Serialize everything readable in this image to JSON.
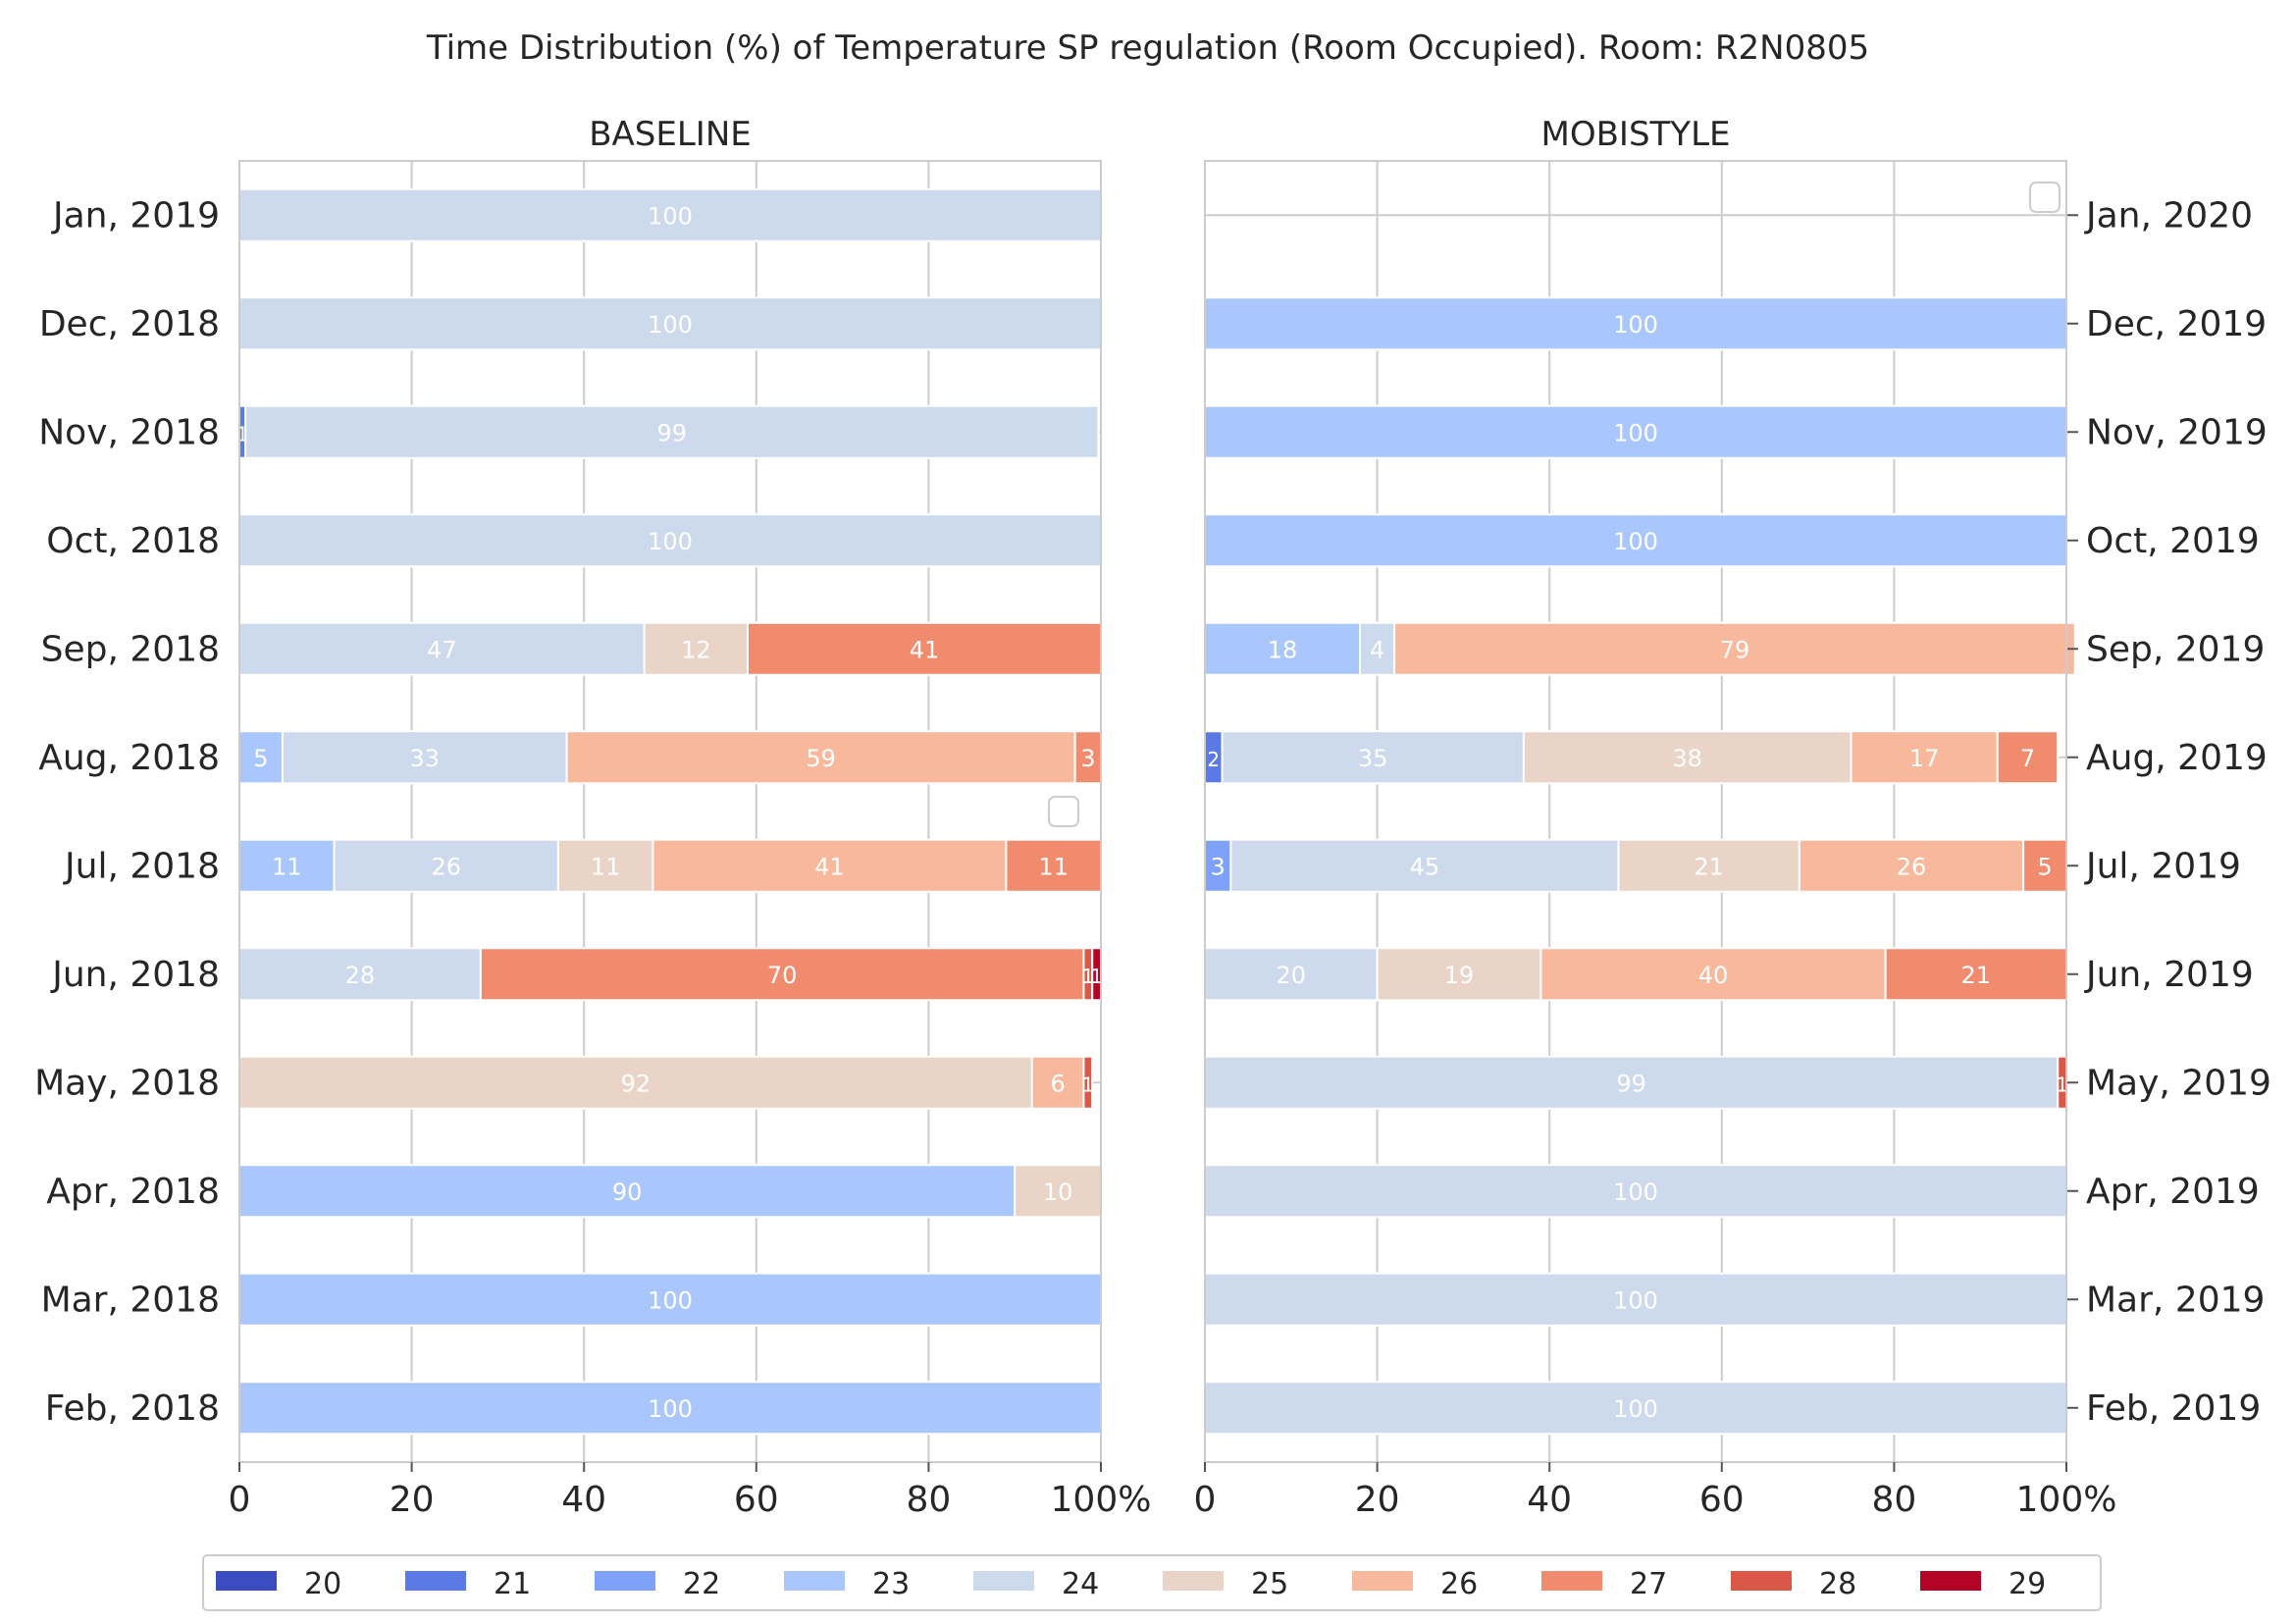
{
  "title": "Time Distribution (%) of Temperature SP regulation (Room Occupied). Room: R2N0805",
  "legend": {
    "labels": [
      "20",
      "21",
      "22",
      "23",
      "24",
      "25",
      "26",
      "27",
      "28",
      "29"
    ],
    "colors": [
      "#3b4cc0",
      "#5b7ae5",
      "#7ea1fa",
      "#aac7fd",
      "#cdd9ec",
      "#ead4c8",
      "#f7b89c",
      "#f08b6e",
      "#d95847",
      "#b40426"
    ]
  },
  "label_color": "#ffffff",
  "chart_data": [
    {
      "type": "bar",
      "orientation": "horizontal",
      "stacked": true,
      "title": "BASELINE",
      "xlim": [
        0,
        100
      ],
      "xticks": [
        "0",
        "20",
        "40",
        "60",
        "80",
        "100%"
      ],
      "grid": true,
      "categories": [
        "Jan, 2019",
        "Dec, 2018",
        "Nov, 2018",
        "Oct, 2018",
        "Sep, 2018",
        "Aug, 2018",
        "Jul, 2018",
        "Jun, 2018",
        "May, 2018",
        "Apr, 2018",
        "Mar, 2018",
        "Feb, 2018"
      ],
      "series": [
        {
          "name": "20",
          "values": [
            0,
            0,
            0,
            0,
            0,
            0,
            0,
            0,
            0,
            0,
            0,
            0
          ]
        },
        {
          "name": "21",
          "values": [
            0,
            0,
            0.7,
            0,
            0,
            0,
            0,
            0,
            0,
            0,
            0,
            0
          ]
        },
        {
          "name": "22",
          "values": [
            0,
            0,
            0,
            0,
            0,
            0,
            0,
            0,
            0,
            0,
            0,
            0
          ]
        },
        {
          "name": "23",
          "values": [
            0,
            0,
            0,
            0,
            0,
            5,
            11,
            0,
            0,
            90,
            100,
            100
          ]
        },
        {
          "name": "24",
          "values": [
            100,
            100,
            99,
            100,
            47,
            33,
            26,
            28,
            0,
            0,
            0,
            0
          ]
        },
        {
          "name": "25",
          "values": [
            0,
            0,
            0,
            0,
            12,
            0,
            11,
            0,
            92,
            10,
            0,
            0
          ]
        },
        {
          "name": "26",
          "values": [
            0,
            0,
            0,
            0,
            0,
            59,
            41,
            0,
            6,
            0,
            0,
            0
          ]
        },
        {
          "name": "27",
          "values": [
            0,
            0,
            0,
            0,
            41,
            3,
            11,
            70,
            0,
            0,
            0,
            0
          ]
        },
        {
          "name": "28",
          "values": [
            0,
            0,
            0,
            0,
            0,
            0,
            0,
            1,
            1,
            0,
            0,
            0
          ]
        },
        {
          "name": "29",
          "values": [
            0,
            0,
            0,
            0,
            0,
            0,
            0,
            1,
            0,
            0,
            0,
            0
          ]
        }
      ],
      "empty_legend_box": true
    },
    {
      "type": "bar",
      "orientation": "horizontal",
      "stacked": true,
      "title": "MOBISTYLE",
      "xlim": [
        0,
        100
      ],
      "xticks": [
        "0",
        "20",
        "40",
        "60",
        "80",
        "100%"
      ],
      "grid": true,
      "categories": [
        "Jan, 2020",
        "Dec, 2019",
        "Nov, 2019",
        "Oct, 2019",
        "Sep, 2019",
        "Aug, 2019",
        "Jul, 2019",
        "Jun, 2019",
        "May, 2019",
        "Apr, 2019",
        "Mar, 2019",
        "Feb, 2019"
      ],
      "series": [
        {
          "name": "20",
          "values": [
            0,
            0,
            0,
            0,
            0,
            0,
            0,
            0,
            0,
            0,
            0,
            0
          ]
        },
        {
          "name": "21",
          "values": [
            0,
            0,
            0,
            0,
            0,
            2,
            0,
            0,
            0,
            0,
            0,
            0
          ]
        },
        {
          "name": "22",
          "values": [
            0,
            0,
            0,
            0,
            0,
            0,
            3,
            0,
            0,
            0,
            0,
            0
          ]
        },
        {
          "name": "23",
          "values": [
            0,
            100,
            100,
            100,
            18,
            0,
            0,
            0,
            0,
            0,
            0,
            0
          ]
        },
        {
          "name": "24",
          "values": [
            0,
            0,
            0,
            0,
            4,
            35,
            45,
            20,
            99,
            100,
            100,
            100
          ]
        },
        {
          "name": "25",
          "values": [
            0,
            0,
            0,
            0,
            0,
            38,
            21,
            19,
            0,
            0,
            0,
            0
          ]
        },
        {
          "name": "26",
          "values": [
            0,
            0,
            0,
            0,
            79,
            17,
            26,
            40,
            0,
            0,
            0,
            0
          ]
        },
        {
          "name": "27",
          "values": [
            0,
            0,
            0,
            0,
            0,
            7,
            5,
            21,
            0,
            0,
            0,
            0
          ]
        },
        {
          "name": "28",
          "values": [
            0,
            0,
            0,
            0,
            0,
            0,
            0,
            0,
            1,
            0,
            0,
            0
          ]
        },
        {
          "name": "29",
          "values": [
            0,
            0,
            0,
            0,
            0,
            0,
            0,
            0,
            0,
            0,
            0,
            0
          ]
        }
      ],
      "empty_legend_box": true
    }
  ]
}
